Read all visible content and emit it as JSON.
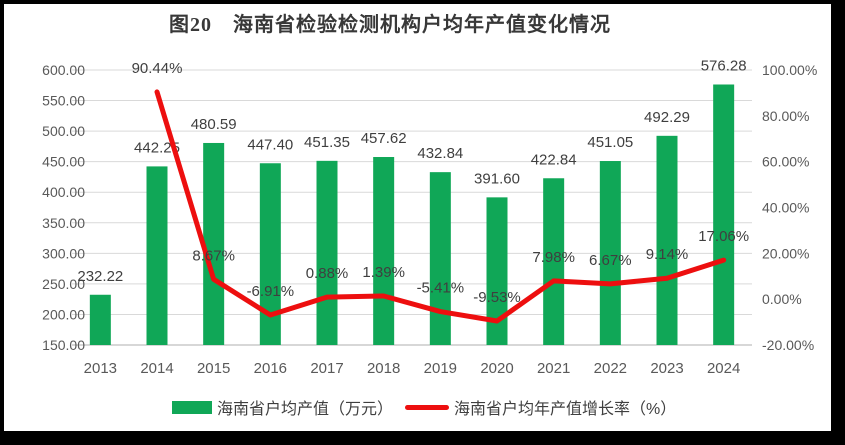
{
  "title": "图20　海南省检验检测机构户均年产值变化情况",
  "colors": {
    "bar": "#10A757",
    "line": "#ED0F0F",
    "grid": "#D9D9D9",
    "axis_line": "#BFBFBF",
    "axis_text": "#595959",
    "label_text": "#3F3F3F",
    "frame": "#000000",
    "background": "#FFFFFF"
  },
  "legend": {
    "items": [
      {
        "label": "海南省户均产值（万元）",
        "marker": "bar-swatch"
      },
      {
        "label": "海南省户均年产值增长率（%）",
        "marker": "line-swatch"
      }
    ]
  },
  "chart_data": {
    "type": "combo-bar-line",
    "title": "图20　海南省检验检测机构户均年产值变化情况",
    "categories": [
      "2013",
      "2014",
      "2015",
      "2016",
      "2017",
      "2018",
      "2019",
      "2020",
      "2021",
      "2022",
      "2023",
      "2024"
    ],
    "series": [
      {
        "name": "海南省户均产值（万元）",
        "type": "bar",
        "axis": "left",
        "values": [
          232.22,
          442.25,
          480.59,
          447.4,
          451.35,
          457.62,
          432.84,
          391.6,
          422.84,
          451.05,
          492.29,
          576.28
        ],
        "labels": [
          "232.22",
          "442.25",
          "480.59",
          "447.40",
          "451.35",
          "457.62",
          "432.84",
          "391.60",
          "422.84",
          "451.05",
          "492.29",
          "576.28"
        ]
      },
      {
        "name": "海南省户均年产值增长率（%）",
        "type": "line",
        "axis": "right",
        "values": [
          null,
          90.44,
          8.67,
          -6.91,
          0.88,
          1.39,
          -5.41,
          -9.53,
          7.98,
          6.67,
          9.14,
          17.06
        ],
        "labels": [
          null,
          "90.44%",
          "8.67%",
          "-6.91%",
          "0.88%",
          "1.39%",
          "-5.41%",
          "-9.53%",
          "7.98%",
          "6.67%",
          "9.14%",
          "17.06%"
        ]
      }
    ],
    "left_axis": {
      "min": 150,
      "max": 600,
      "step": 50,
      "tick_labels": [
        "150.00",
        "200.00",
        "250.00",
        "300.00",
        "350.00",
        "400.00",
        "450.00",
        "500.00",
        "550.00",
        "600.00"
      ]
    },
    "right_axis": {
      "min": -20,
      "max": 100,
      "step": 20,
      "tick_labels": [
        "-20.00%",
        "0.00%",
        "20.00%",
        "40.00%",
        "60.00%",
        "80.00%",
        "100.00%"
      ]
    },
    "grid": true,
    "legend_position": "bottom"
  }
}
